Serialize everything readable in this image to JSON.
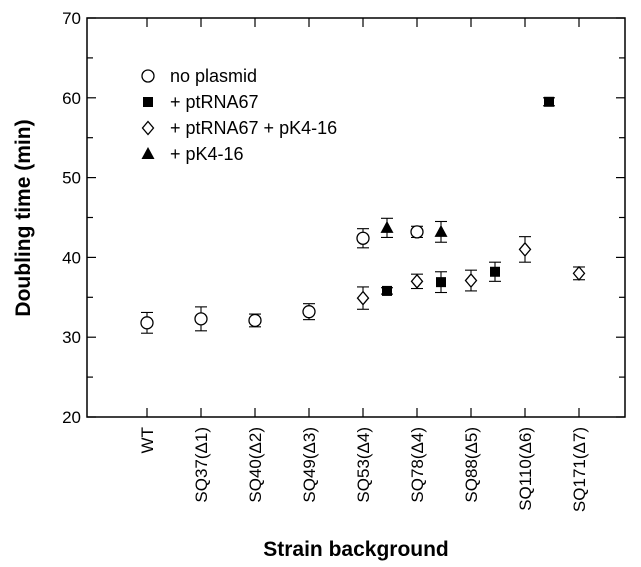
{
  "chart_data": {
    "type": "scatter",
    "title": "",
    "xlabel": "Strain background",
    "ylabel": "Doubling time (min)",
    "ylim": [
      20,
      70
    ],
    "y_ticks": [
      20,
      30,
      40,
      50,
      60,
      70
    ],
    "grid": false,
    "legend_position": "top-left",
    "categories": [
      "WT",
      "SQ37(Δ1)",
      "SQ40(Δ2)",
      "SQ49(Δ3)",
      "SQ53(Δ4)",
      "SQ78(Δ4)",
      "SQ88(Δ5)",
      "SQ110(Δ6)",
      "SQ171(Δ7)"
    ],
    "series": [
      {
        "name": "no plasmid",
        "marker": "open-circle",
        "points": [
          {
            "category": "WT",
            "y": 31.8,
            "err": 1.3
          },
          {
            "category": "SQ37(Δ1)",
            "y": 32.3,
            "err": 1.5
          },
          {
            "category": "SQ40(Δ2)",
            "y": 32.1,
            "err": 0.8
          },
          {
            "category": "SQ49(Δ3)",
            "y": 33.2,
            "err": 1.0
          },
          {
            "category": "SQ53(Δ4)",
            "y": 42.4,
            "err": 1.2
          },
          {
            "category": "SQ78(Δ4)",
            "y": 43.2,
            "err": 0.7
          }
        ]
      },
      {
        "name": "+ ptRNA67",
        "marker": "filled-square",
        "points": [
          {
            "category": "SQ53(Δ4)",
            "y": 35.8,
            "err": 0.4
          },
          {
            "category": "SQ78(Δ4)",
            "y": 36.9,
            "err": 1.3
          },
          {
            "category": "SQ88(Δ5)",
            "y": 38.2,
            "err": 1.2
          },
          {
            "category": "SQ110(Δ6)",
            "y": 59.5,
            "err": 0.5
          }
        ]
      },
      {
        "name": "+ ptRNA67 + pK4-16",
        "marker": "open-diamond",
        "points": [
          {
            "category": "SQ53(Δ4)",
            "y": 34.9,
            "err": 1.4
          },
          {
            "category": "SQ78(Δ4)",
            "y": 37.0,
            "err": 0.9
          },
          {
            "category": "SQ88(Δ5)",
            "y": 37.1,
            "err": 1.3
          },
          {
            "category": "SQ110(Δ6)",
            "y": 41.0,
            "err": 1.6
          },
          {
            "category": "SQ171(Δ7)",
            "y": 38.0,
            "err": 0.8
          }
        ]
      },
      {
        "name": "+ pK4-16",
        "marker": "filled-triangle",
        "points": [
          {
            "category": "SQ53(Δ4)",
            "y": 43.7,
            "err": 1.2
          },
          {
            "category": "SQ78(Δ4)",
            "y": 43.2,
            "err": 1.3
          }
        ]
      }
    ]
  }
}
